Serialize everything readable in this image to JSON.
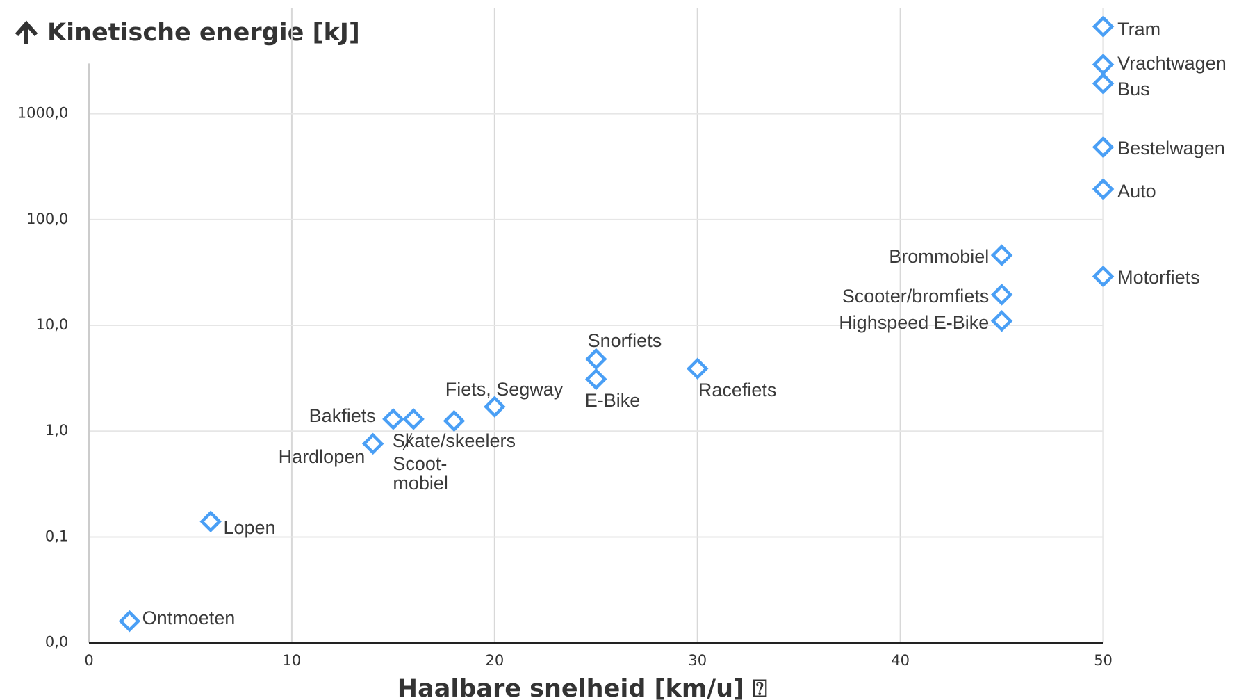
{
  "chart_data": {
    "type": "scatter",
    "title": "Kinetische energie [kJ]",
    "x_label": "Haalbare snelheid [km/u] ⍰",
    "labels": [
      "Ontmoeten",
      "Lopen",
      "Hardlopen",
      "Bakfiets",
      "Scoot-\nmobiel",
      "Skate/skeelers",
      "Fiets, Segway",
      "Snorfiets",
      "E-Bike",
      "Racefiets",
      "Highspeed E-Bike",
      "Scooter/bromfiets",
      "Brommobiel",
      "Motorfiets",
      "Auto",
      "Bestelwagen",
      "Bus",
      "Vrachtwagen",
      "Tram"
    ],
    "x": [
      2,
      6,
      14,
      15,
      16,
      18,
      20,
      25,
      25,
      30,
      45,
      45,
      45,
      50,
      50,
      50,
      50,
      50,
      50
    ],
    "values": [
      0.016,
      0.14,
      0.76,
      1.3,
      1.3,
      1.25,
      1.7,
      4.8,
      3.1,
      3.9,
      11,
      19.5,
      46,
      29,
      194,
      484,
      1930,
      2920,
      6680
    ],
    "color": "#4a9ff5",
    "xlim": [
      0,
      50
    ],
    "xticks": [
      0,
      10,
      20,
      30,
      40,
      50
    ],
    "ylim": [
      0.01,
      10000
    ],
    "log_y": true,
    "yticks": [
      {
        "value": 0.01,
        "label": "0,0"
      },
      {
        "value": 0.1,
        "label": "0,1"
      },
      {
        "value": 1,
        "label": "1,0"
      },
      {
        "value": 10,
        "label": "10,0"
      },
      {
        "value": 100,
        "label": "100,0"
      },
      {
        "value": 1000,
        "label": "1000,0"
      }
    ],
    "grid": true
  }
}
